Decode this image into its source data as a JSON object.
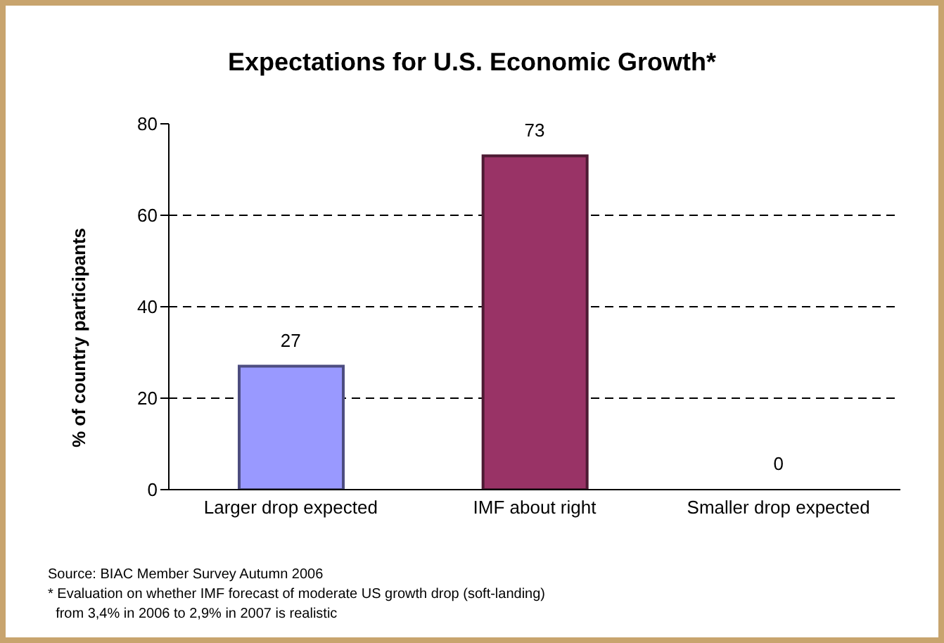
{
  "chart_data": {
    "type": "bar",
    "title": "Expectations for U.S. Economic Growth*",
    "ylabel": "% of country participants",
    "categories": [
      "Larger drop expected",
      "IMF about right",
      "Smaller drop expected"
    ],
    "values": [
      27,
      73,
      0
    ],
    "colors": [
      "#9999ff",
      "#993366",
      "#9999ff"
    ],
    "ylim": [
      0,
      80
    ],
    "yticks": [
      0,
      20,
      40,
      60,
      80
    ],
    "grid": "y",
    "legend": false,
    "data_labels": true,
    "annotations": [
      "Source: BIAC Member Survey Autumn 2006",
      "* Evaluation on whether IMF forecast of moderate US growth drop (soft-landing)\n  from 3,4% in 2006 to 2,9% in 2007 is realistic"
    ]
  }
}
